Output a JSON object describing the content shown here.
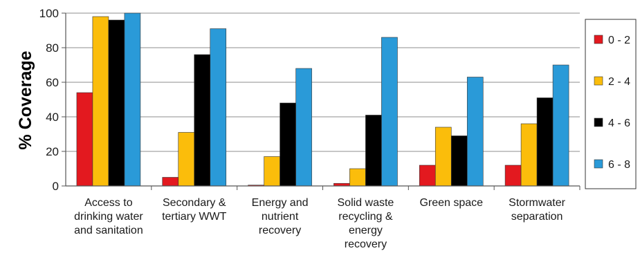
{
  "chart_data": {
    "type": "bar",
    "ylabel": "% Coverage",
    "xlabel": "",
    "title": "",
    "ylim": [
      0,
      100
    ],
    "yticks": [
      0,
      20,
      40,
      60,
      80,
      100
    ],
    "grid": true,
    "legend_position": "right",
    "categories": [
      [
        "Access to",
        "drinking water",
        "and sanitation"
      ],
      [
        "Secondary &",
        "tertiary WWT"
      ],
      [
        "Energy and",
        "nutrient",
        "recovery"
      ],
      [
        "Solid waste",
        "recycling &",
        "energy",
        "recovery"
      ],
      [
        "Green space"
      ],
      [
        "Stormwater",
        "separation"
      ]
    ],
    "series": [
      {
        "name": "0 - 2",
        "color": "#e3191f",
        "values": [
          54,
          5,
          0.5,
          1.5,
          12,
          12
        ]
      },
      {
        "name": "2 - 4",
        "color": "#fbbd0b",
        "values": [
          98,
          31,
          17,
          10,
          34,
          36
        ]
      },
      {
        "name": "4 - 6",
        "color": "#000000",
        "values": [
          96,
          76,
          48,
          41,
          29,
          51
        ]
      },
      {
        "name": "6 - 8",
        "color": "#2a9ad8",
        "values": [
          100,
          91,
          68,
          86,
          63,
          70
        ]
      }
    ]
  }
}
